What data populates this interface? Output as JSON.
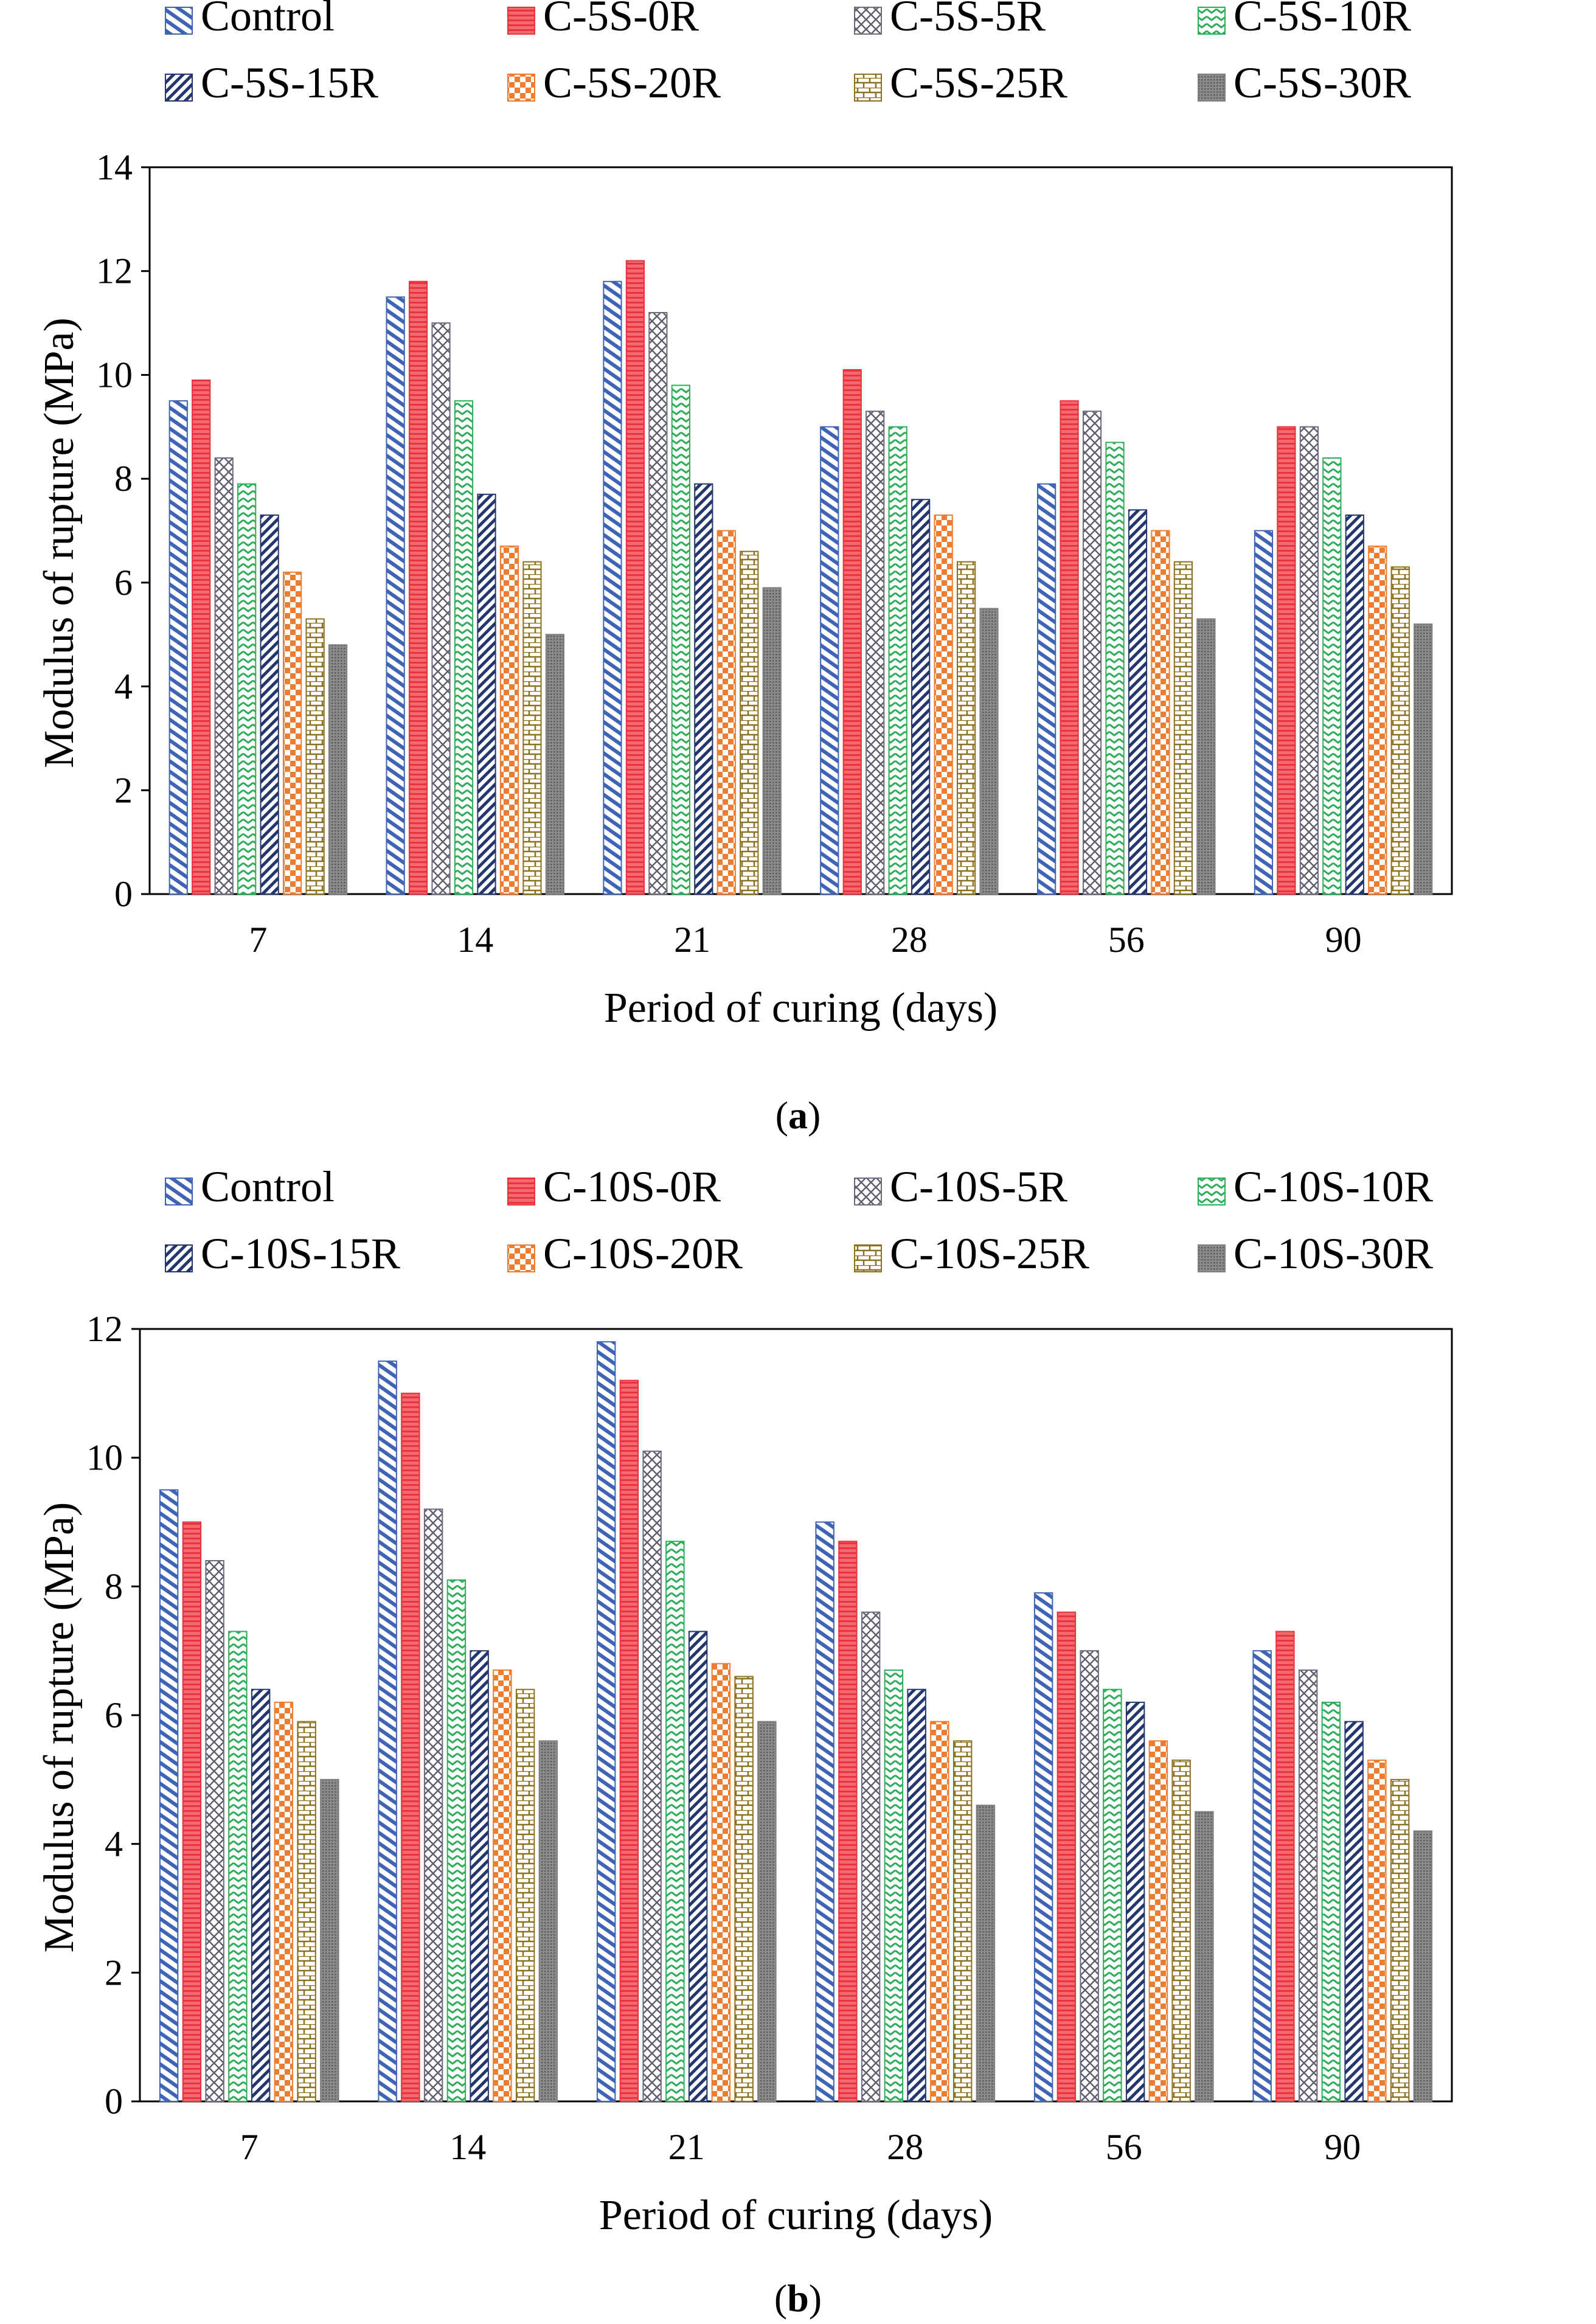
{
  "chart_data": [
    {
      "type": "bar",
      "caption": "(a)",
      "xlabel": "Period of curing (days)",
      "ylabel": "Modulus of rupture (MPa)",
      "ylim": [
        0,
        14
      ],
      "yticks": [
        0,
        2,
        4,
        6,
        8,
        10,
        12,
        14
      ],
      "grid": false,
      "legend_position": "top",
      "categories": [
        "7",
        "14",
        "21",
        "28",
        "56",
        "90"
      ],
      "series": [
        {
          "name": "Control",
          "pattern": "diag-blue",
          "values": [
            9.5,
            11.5,
            11.8,
            9.0,
            7.9,
            7.0
          ]
        },
        {
          "name": "C-5S-0R",
          "pattern": "hlines-red",
          "values": [
            9.9,
            11.8,
            12.2,
            10.1,
            9.5,
            9.0
          ]
        },
        {
          "name": "C-5S-5R",
          "pattern": "cross-gray",
          "values": [
            8.4,
            11.0,
            11.2,
            9.3,
            9.3,
            9.0
          ]
        },
        {
          "name": "C-5S-10R",
          "pattern": "zigzag-green",
          "values": [
            7.9,
            9.5,
            9.8,
            9.0,
            8.7,
            8.4
          ]
        },
        {
          "name": "C-5S-15R",
          "pattern": "diag-navy",
          "values": [
            7.3,
            7.7,
            7.9,
            7.6,
            7.4,
            7.3
          ]
        },
        {
          "name": "C-5S-20R",
          "pattern": "check-orange",
          "values": [
            6.2,
            6.7,
            7.0,
            7.3,
            7.0,
            6.7
          ]
        },
        {
          "name": "C-5S-25R",
          "pattern": "brick-olive",
          "values": [
            5.3,
            6.4,
            6.6,
            6.4,
            6.4,
            6.3
          ]
        },
        {
          "name": "C-5S-30R",
          "pattern": "dots-gray",
          "values": [
            4.8,
            5.0,
            5.9,
            5.5,
            5.3,
            5.2
          ]
        }
      ]
    },
    {
      "type": "bar",
      "caption": "(b)",
      "xlabel": "Period of curing (days)",
      "ylabel": "Modulus of rupture (MPa)",
      "ylim": [
        0,
        12
      ],
      "yticks": [
        0,
        2,
        4,
        6,
        8,
        10,
        12
      ],
      "grid": false,
      "legend_position": "top",
      "categories": [
        "7",
        "14",
        "21",
        "28",
        "56",
        "90"
      ],
      "series": [
        {
          "name": "Control",
          "pattern": "diag-blue",
          "values": [
            9.5,
            11.5,
            11.8,
            9.0,
            7.9,
            7.0
          ]
        },
        {
          "name": "C-10S-0R",
          "pattern": "hlines-red",
          "values": [
            9.0,
            11.0,
            11.2,
            8.7,
            7.6,
            7.3
          ]
        },
        {
          "name": "C-10S-5R",
          "pattern": "cross-gray",
          "values": [
            8.4,
            9.2,
            10.1,
            7.6,
            7.0,
            6.7
          ]
        },
        {
          "name": "C-10S-10R",
          "pattern": "zigzag-green",
          "values": [
            7.3,
            8.1,
            8.7,
            6.7,
            6.4,
            6.2
          ]
        },
        {
          "name": "C-10S-15R",
          "pattern": "diag-navy",
          "values": [
            6.4,
            7.0,
            7.3,
            6.4,
            6.2,
            5.9
          ]
        },
        {
          "name": "C-10S-20R",
          "pattern": "check-orange",
          "values": [
            6.2,
            6.7,
            6.8,
            5.9,
            5.6,
            5.3
          ]
        },
        {
          "name": "C-10S-25R",
          "pattern": "brick-olive",
          "values": [
            5.9,
            6.4,
            6.6,
            5.6,
            5.3,
            5.0
          ]
        },
        {
          "name": "C-10S-30R",
          "pattern": "dots-gray",
          "values": [
            5.0,
            5.6,
            5.9,
            4.6,
            4.5,
            4.2
          ]
        }
      ]
    }
  ],
  "colors": {
    "control": "#3f63b5",
    "red": "#e8323c",
    "gray": "#6b6b7a",
    "green": "#2fae5a",
    "navy": "#24366e",
    "orange": "#ee7d31",
    "olive": "#8a7020",
    "dark_gray": "#7f7f7f",
    "axis": "#000000"
  }
}
